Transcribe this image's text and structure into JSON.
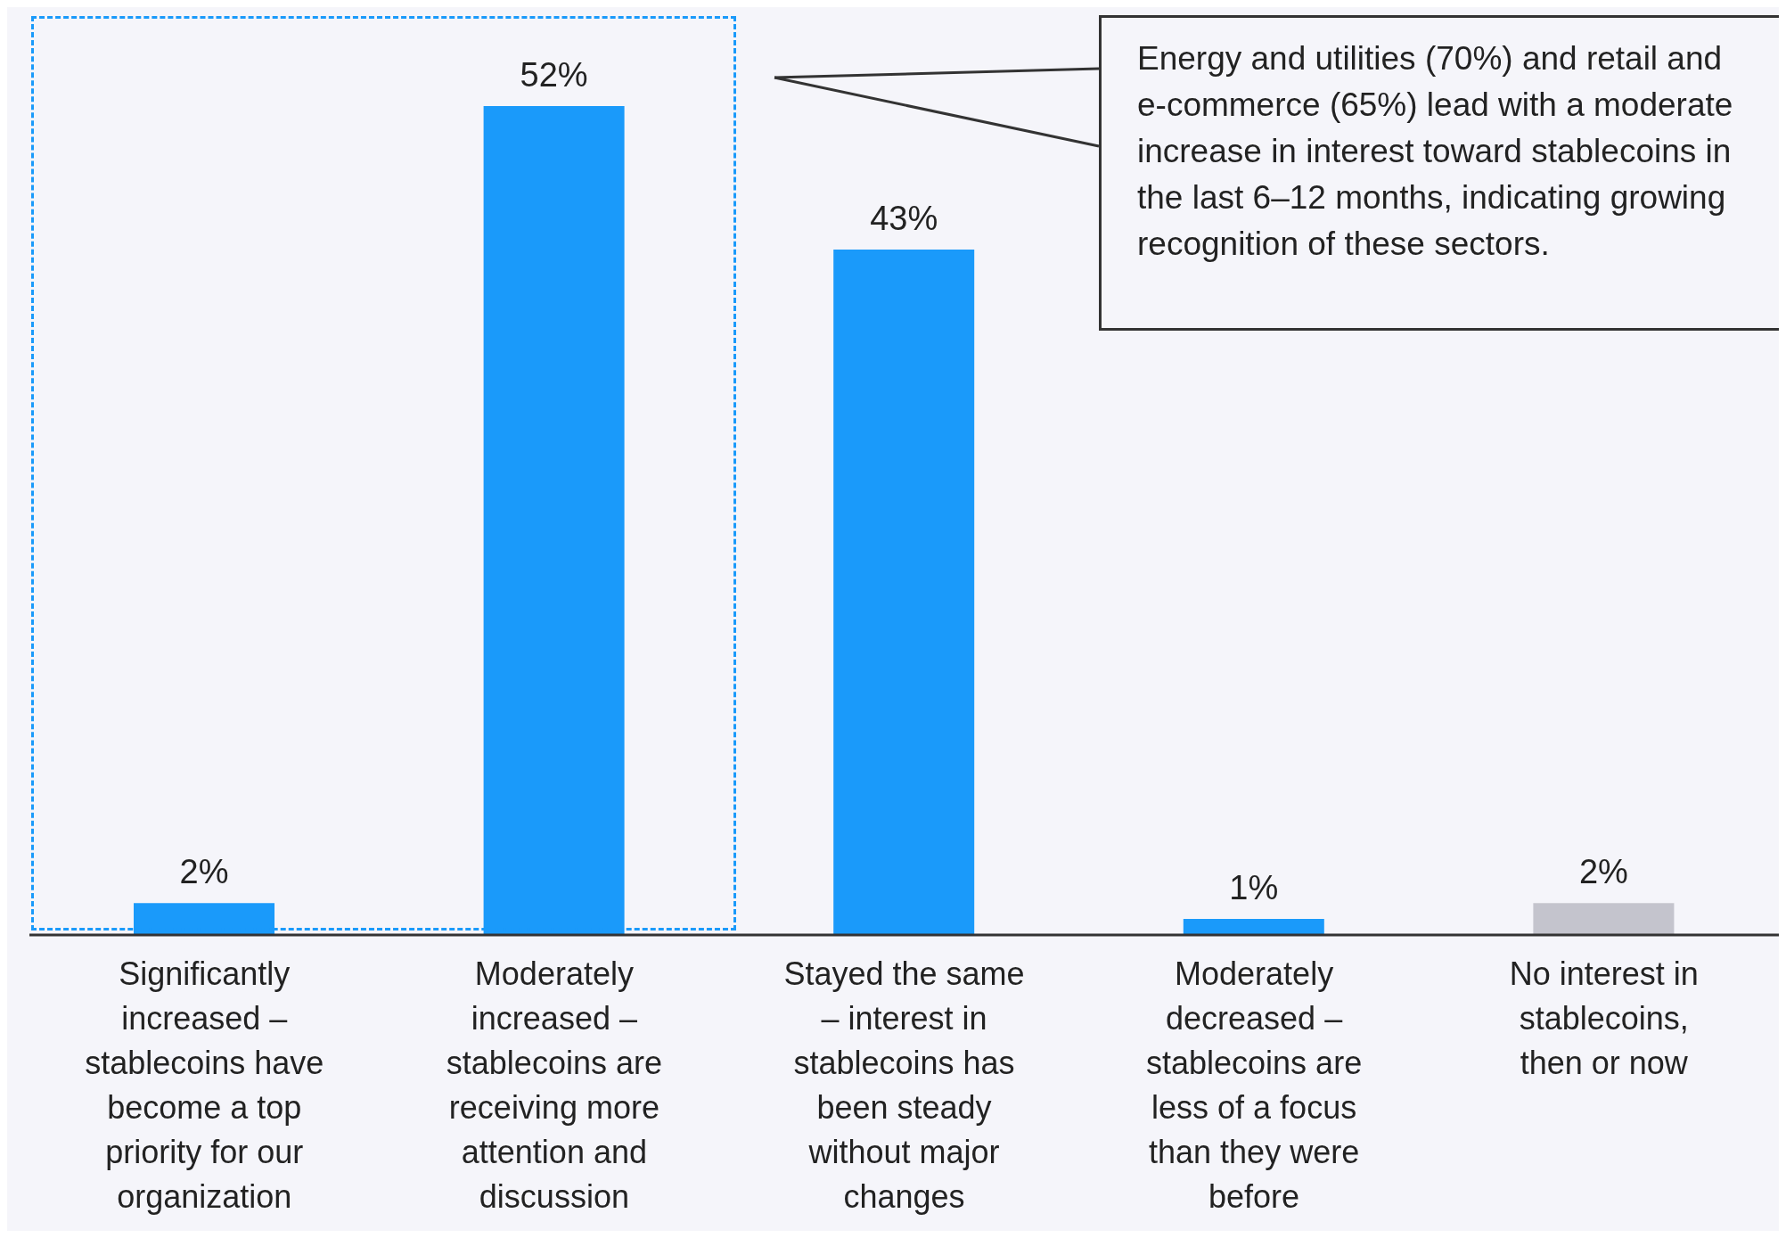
{
  "chart_data": {
    "type": "bar",
    "categories": [
      "Significantly increased – stablecoins have become a top priority for our organization",
      "Moderately increased – stablecoins are receiving more attention and discussion",
      "Stayed the same – interest in stablecoins has been steady without major changes",
      "Moderately decreased – stablecoins are less of a focus than they were before",
      "No interest in stablecoins, then or now"
    ],
    "values": [
      2,
      52,
      43,
      1,
      2
    ],
    "value_labels": [
      "2%",
      "52%",
      "43%",
      "1%",
      "2%"
    ],
    "colors": [
      "#1a9afa",
      "#1a9afa",
      "#1a9afa",
      "#1a9afa",
      "#c4c4cd"
    ],
    "annotations": [
      "Energy and utilities (70%) and retail and e-commerce (65%) lead with a moderate increase in interest toward stablecoins in the last 6–12 months, indicating growing recognition of these sectors."
    ]
  }
}
